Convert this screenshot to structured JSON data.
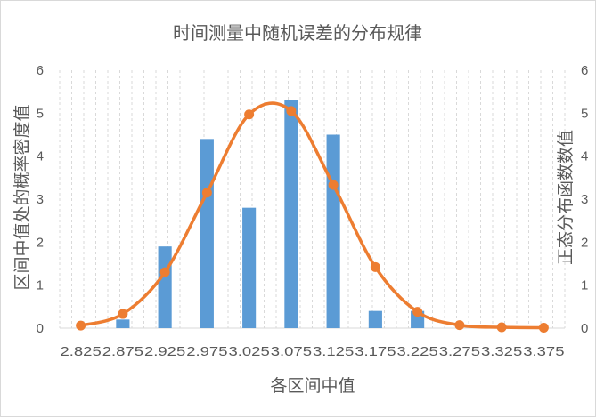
{
  "chart_data": {
    "type": "bar",
    "title": "时间测量中随机误差的分布规律",
    "xlabel": "各区间中值",
    "ylabel": "区间中值处的概率密度值",
    "y2label": "正态分布函数数值",
    "categories": [
      "2.825",
      "2.875",
      "2.925",
      "2.975",
      "3.025",
      "3.075",
      "3.125",
      "3.175",
      "3.225",
      "3.275",
      "3.325",
      "3.375"
    ],
    "ylim": [
      0,
      6
    ],
    "y2lim": [
      0,
      6
    ],
    "yticks": [
      "0",
      "1",
      "2",
      "3",
      "4",
      "5",
      "6"
    ],
    "y2ticks": [
      "0",
      "1",
      "2",
      "3",
      "4",
      "5",
      "6"
    ],
    "grid": "vertical dashed",
    "series": [
      {
        "type": "bar",
        "color": "#5b9bd5",
        "x": [
          2.875,
          2.925,
          2.975,
          3.025,
          3.075,
          3.125,
          3.175,
          3.225
        ],
        "values": [
          0.2,
          1.9,
          4.4,
          2.8,
          5.3,
          4.5,
          0.4,
          0.4
        ]
      },
      {
        "type": "line",
        "smooth": true,
        "axis": "right",
        "color": "#ed7d31",
        "x": [
          2.825,
          2.875,
          2.925,
          2.975,
          3.025,
          3.075,
          3.125,
          3.175,
          3.225,
          3.275,
          3.325,
          3.375
        ],
        "values": [
          0.06,
          0.33,
          1.3,
          3.15,
          4.97,
          5.05,
          3.33,
          1.42,
          0.38,
          0.07,
          0.02,
          0.01
        ]
      }
    ]
  }
}
